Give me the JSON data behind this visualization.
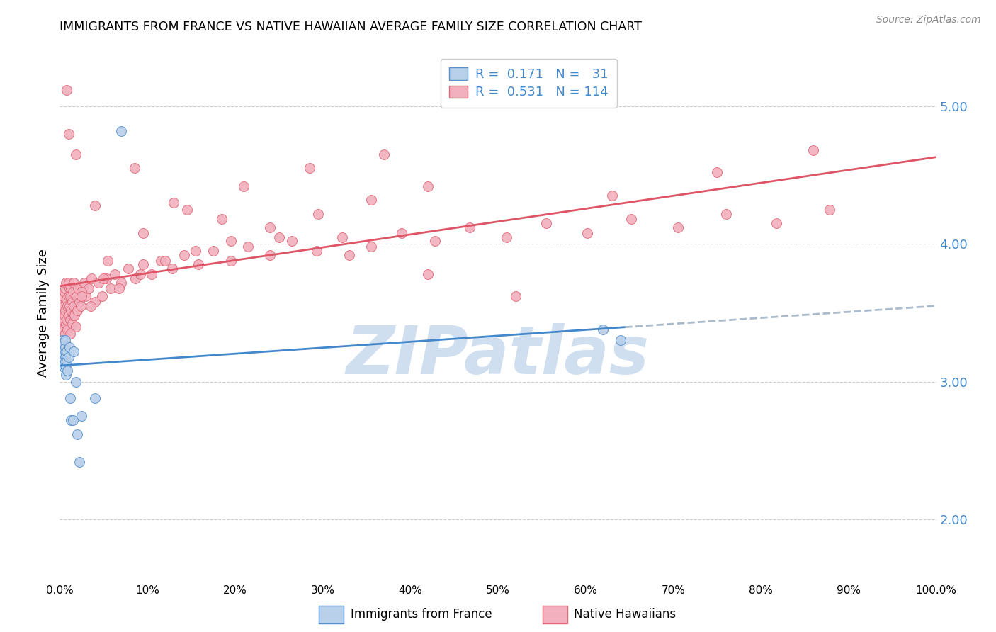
{
  "title": "IMMIGRANTS FROM FRANCE VS NATIVE HAWAIIAN AVERAGE FAMILY SIZE CORRELATION CHART",
  "source": "Source: ZipAtlas.com",
  "ylabel": "Average Family Size",
  "yticks": [
    2.0,
    3.0,
    4.0,
    5.0
  ],
  "xlim": [
    0.0,
    1.0
  ],
  "ylim": [
    1.55,
    5.45
  ],
  "blue_R": 0.171,
  "blue_N": 31,
  "pink_R": 0.531,
  "pink_N": 114,
  "blue_fill_color": "#b8d0ea",
  "pink_fill_color": "#f2b0be",
  "blue_edge_color": "#5590cc",
  "pink_edge_color": "#e06878",
  "blue_line_color": "#4488cc",
  "pink_line_color": "#dd5566",
  "dashed_line_color": "#aabbcc",
  "watermark_color": "#d0dff0",
  "blue_scatter_x": [
    0.001,
    0.002,
    0.003,
    0.003,
    0.004,
    0.004,
    0.005,
    0.005,
    0.006,
    0.006,
    0.006,
    0.007,
    0.007,
    0.007,
    0.008,
    0.008,
    0.009,
    0.01,
    0.011,
    0.012,
    0.013,
    0.015,
    0.016,
    0.018,
    0.02,
    0.022,
    0.025,
    0.04,
    0.07,
    0.62,
    0.64
  ],
  "blue_scatter_y": [
    3.25,
    3.18,
    3.3,
    3.22,
    3.15,
    3.28,
    3.2,
    3.1,
    3.25,
    3.15,
    3.3,
    3.05,
    3.2,
    3.1,
    3.15,
    3.22,
    3.08,
    3.18,
    3.25,
    2.88,
    2.72,
    2.72,
    3.22,
    3.0,
    2.62,
    2.42,
    2.75,
    2.88,
    4.82,
    3.38,
    3.3
  ],
  "pink_scatter_x": [
    0.001,
    0.002,
    0.002,
    0.003,
    0.003,
    0.004,
    0.004,
    0.005,
    0.005,
    0.006,
    0.006,
    0.006,
    0.007,
    0.007,
    0.007,
    0.008,
    0.008,
    0.009,
    0.009,
    0.01,
    0.01,
    0.01,
    0.011,
    0.011,
    0.012,
    0.012,
    0.013,
    0.013,
    0.014,
    0.014,
    0.015,
    0.015,
    0.016,
    0.016,
    0.017,
    0.018,
    0.019,
    0.02,
    0.021,
    0.022,
    0.024,
    0.026,
    0.028,
    0.03,
    0.033,
    0.036,
    0.04,
    0.044,
    0.048,
    0.053,
    0.058,
    0.063,
    0.07,
    0.078,
    0.086,
    0.095,
    0.105,
    0.115,
    0.128,
    0.142,
    0.158,
    0.175,
    0.195,
    0.215,
    0.24,
    0.265,
    0.293,
    0.322,
    0.355,
    0.39,
    0.428,
    0.468,
    0.51,
    0.555,
    0.602,
    0.652,
    0.705,
    0.76,
    0.818,
    0.878,
    0.025,
    0.035,
    0.05,
    0.068,
    0.092,
    0.12,
    0.155,
    0.195,
    0.24,
    0.295,
    0.355,
    0.42,
    0.01,
    0.008,
    0.018,
    0.04,
    0.085,
    0.13,
    0.185,
    0.25,
    0.33,
    0.42,
    0.52,
    0.63,
    0.75,
    0.86,
    0.012,
    0.025,
    0.055,
    0.095,
    0.145,
    0.21,
    0.285,
    0.37
  ],
  "pink_scatter_y": [
    3.4,
    3.5,
    3.3,
    3.62,
    3.45,
    3.55,
    3.38,
    3.48,
    3.65,
    3.35,
    3.52,
    3.68,
    3.42,
    3.58,
    3.72,
    3.45,
    3.6,
    3.38,
    3.55,
    3.48,
    3.62,
    3.72,
    3.55,
    3.68,
    3.45,
    3.62,
    3.52,
    3.68,
    3.42,
    3.58,
    3.48,
    3.65,
    3.55,
    3.72,
    3.48,
    3.4,
    3.62,
    3.52,
    3.68,
    3.58,
    3.55,
    3.68,
    3.72,
    3.62,
    3.68,
    3.75,
    3.58,
    3.72,
    3.62,
    3.75,
    3.68,
    3.78,
    3.72,
    3.82,
    3.75,
    3.85,
    3.78,
    3.88,
    3.82,
    3.92,
    3.85,
    3.95,
    3.88,
    3.98,
    3.92,
    4.02,
    3.95,
    4.05,
    3.98,
    4.08,
    4.02,
    4.12,
    4.05,
    4.15,
    4.08,
    4.18,
    4.12,
    4.22,
    4.15,
    4.25,
    3.65,
    3.55,
    3.75,
    3.68,
    3.78,
    3.88,
    3.95,
    4.02,
    4.12,
    4.22,
    4.32,
    4.42,
    4.8,
    5.12,
    4.65,
    4.28,
    4.55,
    4.3,
    4.18,
    4.05,
    3.92,
    3.78,
    3.62,
    4.35,
    4.52,
    4.68,
    3.35,
    3.62,
    3.88,
    4.08,
    4.25,
    4.42,
    4.55,
    4.65
  ]
}
